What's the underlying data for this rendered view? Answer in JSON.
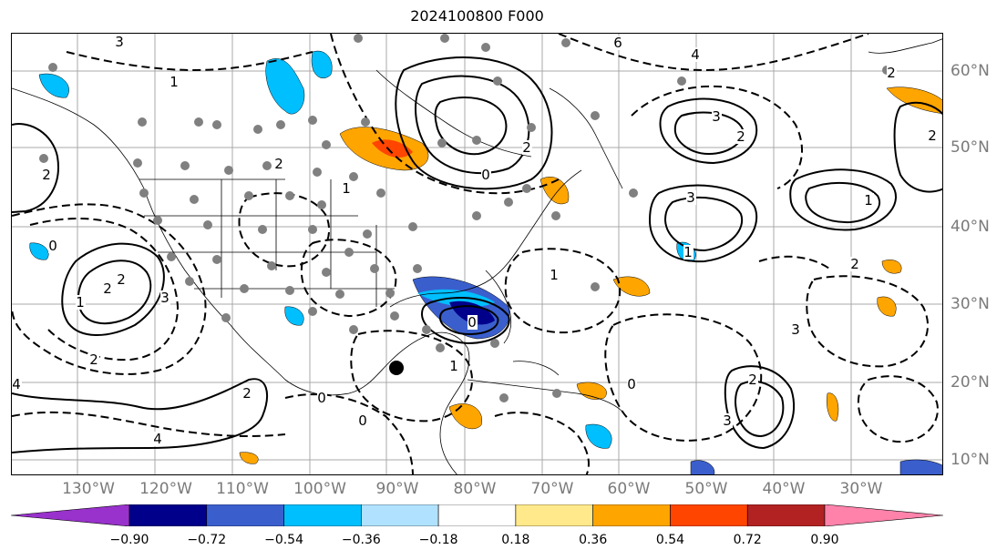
{
  "title": "2024100800 F000",
  "longitude_labels": [
    "130°W",
    "120°W",
    "110°W",
    "100°W",
    "90°W",
    "80°W",
    "70°W",
    "60°W",
    "50°W",
    "40°W",
    "30°W"
  ],
  "latitude_labels": [
    "60°N",
    "50°N",
    "40°N",
    "30°N",
    "20°N",
    "10°N"
  ],
  "colorbar": {
    "ticks": [
      "−0.90",
      "−0.72",
      "−0.54",
      "−0.36",
      "−0.18",
      "0.18",
      "0.36",
      "0.54",
      "0.72",
      "0.90"
    ],
    "colors": [
      "#9932cc",
      "#00008b",
      "#3a5fcd",
      "#00bfff",
      "#b0e2ff",
      "#ffffff",
      "#ffe98a",
      "#ffa500",
      "#ff4500",
      "#b22222",
      "#ff82ab"
    ]
  },
  "contour_labels": [
    "3",
    "1",
    "6",
    "4",
    "3",
    "2",
    "2",
    "0",
    "1",
    "2",
    "0",
    "1",
    "2",
    "2",
    "3",
    "2",
    "4",
    "4",
    "2",
    "0",
    "0",
    "2",
    "1",
    "0",
    "1",
    "3",
    "2",
    "3",
    "1",
    "1",
    "2",
    "2",
    "0",
    "2",
    "3"
  ],
  "storm_marker": "black-dot"
}
